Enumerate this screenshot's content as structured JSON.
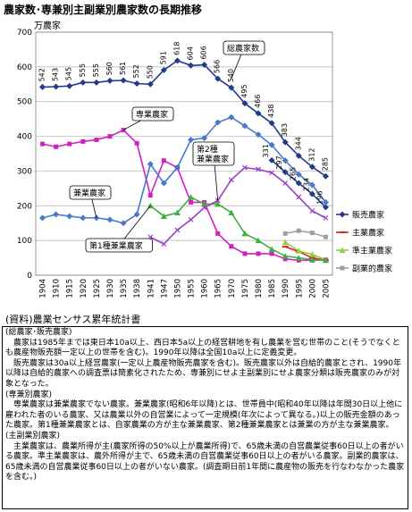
{
  "title": "農家数･専兼別主副業別農家数の長期推移",
  "chart_data": {
    "type": "line",
    "y_unit": "万農家",
    "ylim": [
      0,
      700
    ],
    "y_ticks": [
      0,
      100,
      200,
      300,
      400,
      500,
      600,
      700
    ],
    "x": [
      1904,
      1910,
      1915,
      1920,
      1925,
      1930,
      1935,
      1938,
      1941,
      1947,
      1950,
      1955,
      1960,
      1965,
      1970,
      1975,
      1980,
      1985,
      1990,
      1995,
      2000,
      2005
    ],
    "grid": true,
    "legend_position": "right",
    "series": [
      {
        "name": "販売農家",
        "color": "#1f3c88",
        "marker": "diamond",
        "points": [
          [
            1985,
            331
          ],
          [
            1990,
            297
          ],
          [
            1995,
            265
          ],
          [
            2000,
            234
          ],
          [
            2005,
            196
          ]
        ]
      },
      {
        "name": "主業農家",
        "color": "#e02020",
        "marker": "dash",
        "points": [
          [
            1990,
            82
          ],
          [
            1995,
            68
          ],
          [
            2000,
            50
          ],
          [
            2005,
            43
          ]
        ]
      },
      {
        "name": "準主業農家",
        "color": "#90d040",
        "marker": "triangle",
        "points": [
          [
            1990,
            95
          ],
          [
            1995,
            70
          ],
          [
            2000,
            60
          ],
          [
            2005,
            44
          ]
        ]
      },
      {
        "name": "副業的農家",
        "color": "#a0a0a0",
        "marker": "square",
        "points": [
          [
            1990,
            120
          ],
          [
            1995,
            128
          ],
          [
            2000,
            122
          ],
          [
            2005,
            110
          ]
        ]
      },
      {
        "name": "総農家数",
        "color": "#1f3c88",
        "marker": "diamond",
        "label": "総農家数",
        "points": [
          [
            1904,
            542
          ],
          [
            1910,
            543
          ],
          [
            1915,
            545
          ],
          [
            1920,
            555
          ],
          [
            1925,
            555
          ],
          [
            1930,
            560
          ],
          [
            1935,
            561
          ],
          [
            1938,
            552
          ],
          [
            1941,
            550
          ],
          [
            1947,
            591
          ],
          [
            1950,
            618
          ],
          [
            1955,
            604
          ],
          [
            1960,
            606
          ],
          [
            1965,
            566
          ],
          [
            1970,
            540
          ],
          [
            1975,
            495
          ],
          [
            1980,
            466
          ],
          [
            1985,
            438
          ],
          [
            1990,
            383
          ],
          [
            1995,
            344
          ],
          [
            2000,
            312
          ],
          [
            2005,
            285
          ]
        ]
      },
      {
        "name": "専業農家",
        "color": "#d020c0",
        "marker": "square",
        "label": "専業農家",
        "points": [
          [
            1904,
            378
          ],
          [
            1910,
            370
          ],
          [
            1915,
            378
          ],
          [
            1920,
            385
          ],
          [
            1925,
            390
          ],
          [
            1930,
            400
          ],
          [
            1935,
            418
          ],
          [
            1938,
            380
          ],
          [
            1941,
            230
          ],
          [
            1947,
            330
          ],
          [
            1950,
            310
          ],
          [
            1955,
            210
          ],
          [
            1960,
            210
          ],
          [
            1965,
            120
          ],
          [
            1970,
            83
          ],
          [
            1975,
            62
          ],
          [
            1980,
            62
          ],
          [
            1985,
            62
          ],
          [
            1990,
            47
          ],
          [
            1995,
            43
          ],
          [
            2000,
            43
          ],
          [
            2005,
            44
          ]
        ]
      },
      {
        "name": "兼業農家",
        "color": "#4a78c8",
        "marker": "diamond",
        "label": "兼業農家",
        "points": [
          [
            1904,
            165
          ],
          [
            1910,
            175
          ],
          [
            1915,
            170
          ],
          [
            1920,
            165
          ],
          [
            1925,
            165
          ],
          [
            1930,
            160
          ],
          [
            1935,
            150
          ],
          [
            1938,
            175
          ],
          [
            1941,
            320
          ],
          [
            1947,
            265
          ],
          [
            1950,
            310
          ],
          [
            1955,
            390
          ],
          [
            1960,
            395
          ],
          [
            1965,
            440
          ],
          [
            1970,
            455
          ],
          [
            1975,
            430
          ],
          [
            1980,
            405
          ],
          [
            1985,
            375
          ],
          [
            1990,
            330
          ],
          [
            1995,
            290
          ],
          [
            2000,
            260
          ],
          [
            2005,
            210
          ]
        ]
      },
      {
        "name": "第1種兼業農家",
        "color": "#3fb040",
        "marker": "triangle",
        "label": "第1種兼業農家",
        "points": [
          [
            1941,
            200
          ],
          [
            1947,
            170
          ],
          [
            1950,
            180
          ],
          [
            1955,
            225
          ],
          [
            1960,
            205
          ],
          [
            1965,
            205
          ],
          [
            1970,
            180
          ],
          [
            1975,
            120
          ],
          [
            1980,
            100
          ],
          [
            1985,
            75
          ],
          [
            1990,
            55
          ],
          [
            1995,
            50
          ],
          [
            2000,
            45
          ],
          [
            2005,
            43
          ]
        ]
      },
      {
        "name": "第2種兼業農家",
        "color": "#9b3fc0",
        "marker": "x",
        "label": "第2種\n兼業農家",
        "points": [
          [
            1941,
            110
          ],
          [
            1947,
            90
          ],
          [
            1950,
            130
          ],
          [
            1955,
            160
          ],
          [
            1960,
            195
          ],
          [
            1965,
            215
          ],
          [
            1970,
            275
          ],
          [
            1975,
            310
          ],
          [
            1980,
            305
          ],
          [
            1985,
            295
          ],
          [
            1990,
            265
          ],
          [
            1995,
            225
          ],
          [
            2000,
            185
          ],
          [
            2005,
            165
          ]
        ]
      }
    ],
    "data_labels": [
      "542",
      "543",
      "545",
      "555",
      "555",
      "560",
      "561",
      "552",
      "550",
      "591",
      "618",
      "604",
      "606",
      "566",
      "540",
      "495",
      "466",
      "438",
      "383",
      "344",
      "312",
      "285",
      "331",
      "297",
      "265",
      "234",
      "196"
    ],
    "annotations": [
      "総農家数",
      "専業農家",
      "兼業農家",
      "第1種兼業農家",
      "第2種\n兼業農家"
    ]
  },
  "source": "(資料)農業センサス累年統計書",
  "notes": [
    {
      "h": "(総農家･販売農家)"
    },
    {
      "t": "農家は1985年までは東日本10a以上、西日本5a以上の経営耕地を有し農業を営む世帯のこと(そうでなくとも農産物販売額一定以上の世帯を含む)。1990年以降は全国10a以上に定義変更。"
    },
    {
      "t": "販売農家は30a以上経営農家(一定以上農産物販売農家を含む)。販売農家以外は自給的農家とされ、1990年以降は自給的農家への調査票は簡素化されたため、専兼別にせよ主副業別にせよ農家分類は販売農家のみが対象となった。"
    },
    {
      "h": "(専兼別農家)"
    },
    {
      "t": "専業農家は兼業農家でない農家。兼業農家(昭和6年以降)とは、世帯員中(昭和40年以降は年間30日以上他に雇われた者のいる農家、又は農業以外の自営業によって一定規模(年次によって異なる。)以上の販売金額のあった農家。第1種兼業農家とは、自家農業の方が主な兼業農家、第2種兼業農家とは兼業の方が主な兼業農家。"
    },
    {
      "h": "(主副業別農家)"
    },
    {
      "t": "主業農家は、農業所得が主(農家所得の50%以上が農業所得)で、65歳未満の自営農業従事60日以上の者がいる農家。準主業農家は、農外所得が主で、65歳未満の自営農業従事60日以上の者がいる農家。副業的農家は、65歳未満の自営農業従事60日以上の者がいない農家。(調査期日前1年間に農産物の販売を行なわなかった農家を含む。)"
    }
  ]
}
